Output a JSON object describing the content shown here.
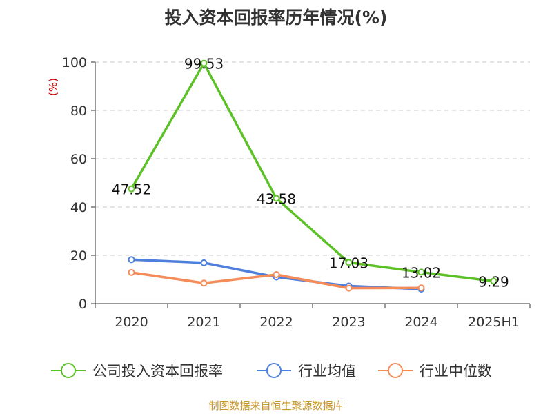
{
  "source_note": "制图数据来自恒生聚源数据库",
  "colors": {
    "company": "#5cc126",
    "industry_avg": "#4f7fdc",
    "industry_median": "#f48c5a",
    "unit_label": "#cc0000",
    "source_text": "#c8962a"
  },
  "chart_data": {
    "type": "line",
    "title": "投入资本回报率历年情况(%)",
    "ylabel": "(%)",
    "categories": [
      "2020",
      "2021",
      "2022",
      "2023",
      "2024",
      "2025H1"
    ],
    "ylim": [
      0,
      100
    ],
    "yticks": [
      0,
      20,
      40,
      60,
      80,
      100
    ],
    "grid": true,
    "legend_position": "bottom",
    "series": [
      {
        "name": "公司投入资本回报率",
        "values": [
          47.52,
          99.53,
          43.58,
          17.03,
          13.02,
          9.29
        ],
        "labels": [
          "47.52",
          "99.53",
          "43.58",
          "17.03",
          "13.02",
          "9.29"
        ]
      },
      {
        "name": "行业均值",
        "values": [
          18.2,
          16.9,
          11.0,
          7.3,
          6.0,
          null
        ]
      },
      {
        "name": "行业中位数",
        "values": [
          12.9,
          8.5,
          12.0,
          6.4,
          6.5,
          null
        ]
      }
    ]
  }
}
